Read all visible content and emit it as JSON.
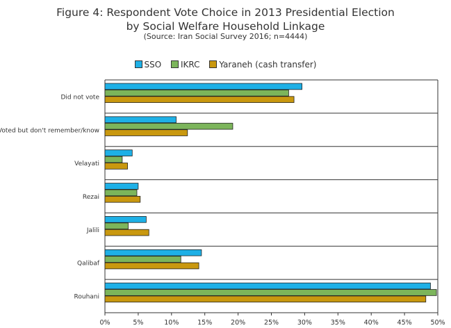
{
  "chart_data": {
    "type": "bar",
    "orientation": "horizontal",
    "title": "Figure 4: Respondent Vote Choice in 2013 Presidential Election by Social Welfare Household Linkage",
    "title_lines": [
      "Figure 4: Respondent Vote Choice in 2013 Presidential Election",
      "by Social Welfare Household Linkage"
    ],
    "subtitle": "(Source: Iran Social Survey 2016; n=4444)",
    "xlabel": "",
    "ylabel": "",
    "xlim": [
      0,
      50
    ],
    "x_ticks": [
      0,
      5,
      10,
      15,
      20,
      25,
      30,
      35,
      40,
      45,
      50
    ],
    "x_tick_labels": [
      "0%",
      "5%",
      "10%",
      "15%",
      "20%",
      "25%",
      "30%",
      "35%",
      "40%",
      "45%",
      "50%"
    ],
    "legend_position": "top",
    "grid": false,
    "categories": [
      "Did not vote",
      "Voted but don't remember/know",
      "Velayati",
      "Rezai",
      "Jalili",
      "Qalibaf",
      "Rouhani"
    ],
    "series": [
      {
        "name": "SSO",
        "color": "#1EB0E6",
        "values": [
          29.6,
          10.7,
          4.1,
          5.0,
          6.2,
          14.5,
          48.9
        ]
      },
      {
        "name": "IKRC",
        "color": "#7CB55B",
        "values": [
          27.6,
          19.2,
          2.6,
          4.8,
          3.5,
          11.4,
          49.8
        ]
      },
      {
        "name": "Yaraneh (cash transfer)",
        "color": "#C9980F",
        "values": [
          28.4,
          12.4,
          3.4,
          5.3,
          6.6,
          14.1,
          48.2
        ]
      }
    ]
  }
}
